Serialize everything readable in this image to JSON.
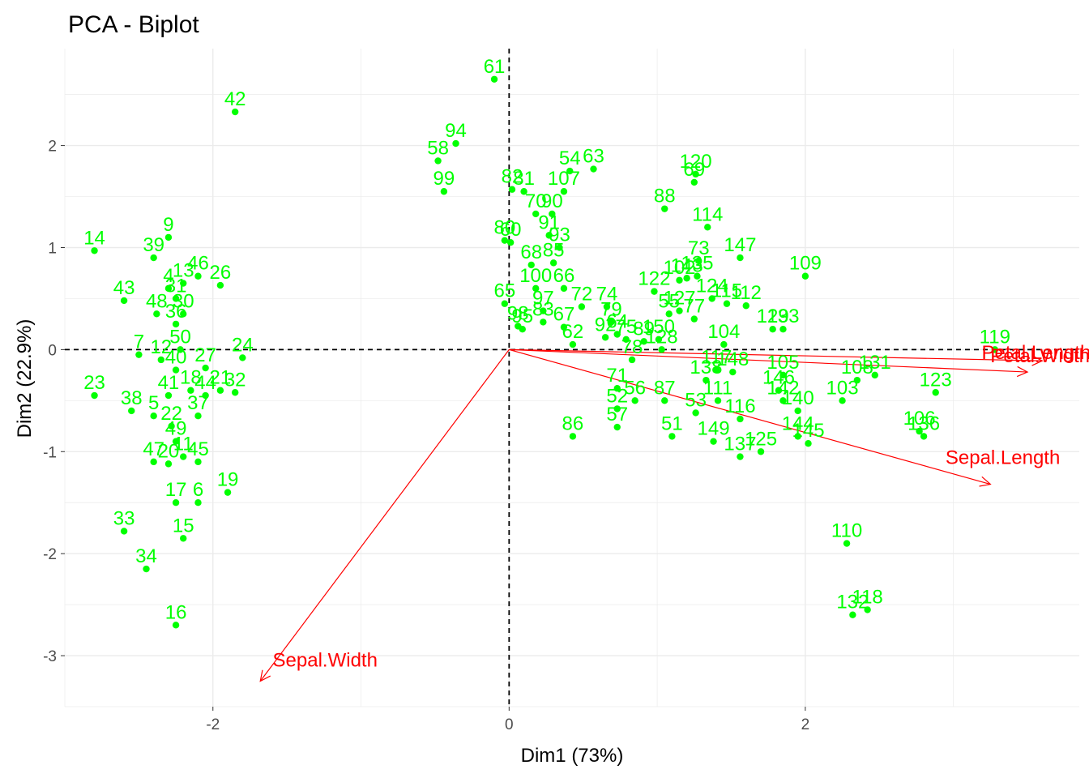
{
  "chart_data": {
    "type": "scatter",
    "title": "PCA - Biplot",
    "xlabel": "Dim1 (73%)",
    "ylabel": "Dim2 (22.9%)",
    "xlim": [
      -3.0,
      3.85
    ],
    "ylim": [
      -3.5,
      2.95
    ],
    "x_ticks": [
      -2,
      0,
      2
    ],
    "y_ticks": [
      -3,
      -2,
      -1,
      0,
      1,
      2
    ],
    "grid": true,
    "legend": "none",
    "colors": {
      "points": "#00ff00",
      "arrows": "#ff0000",
      "grid": "#ebebeb",
      "reference": "#000000"
    },
    "points": [
      {
        "label": "61",
        "x": -0.1,
        "y": 2.65
      },
      {
        "label": "42",
        "x": -1.85,
        "y": 2.33
      },
      {
        "label": "94",
        "x": -0.36,
        "y": 2.02
      },
      {
        "label": "58",
        "x": -0.48,
        "y": 1.85
      },
      {
        "label": "99",
        "x": -0.44,
        "y": 1.55
      },
      {
        "label": "54",
        "x": 0.41,
        "y": 1.75
      },
      {
        "label": "63",
        "x": 0.57,
        "y": 1.77
      },
      {
        "label": "82",
        "x": 0.02,
        "y": 1.57
      },
      {
        "label": "81",
        "x": 0.1,
        "y": 1.55
      },
      {
        "label": "107",
        "x": 0.37,
        "y": 1.55
      },
      {
        "label": "70",
        "x": 0.18,
        "y": 1.33
      },
      {
        "label": "90",
        "x": 0.29,
        "y": 1.33
      },
      {
        "label": "91",
        "x": 0.27,
        "y": 1.12
      },
      {
        "label": "93",
        "x": 0.34,
        "y": 1.0
      },
      {
        "label": "80",
        "x": -0.03,
        "y": 1.07
      },
      {
        "label": "60",
        "x": 0.01,
        "y": 1.05
      },
      {
        "label": "68",
        "x": 0.15,
        "y": 0.83
      },
      {
        "label": "85",
        "x": 0.3,
        "y": 0.85
      },
      {
        "label": "100",
        "x": 0.18,
        "y": 0.6
      },
      {
        "label": "66",
        "x": 0.37,
        "y": 0.6
      },
      {
        "label": "65",
        "x": -0.03,
        "y": 0.45
      },
      {
        "label": "97",
        "x": 0.23,
        "y": 0.38
      },
      {
        "label": "72",
        "x": 0.49,
        "y": 0.42
      },
      {
        "label": "74",
        "x": 0.66,
        "y": 0.42
      },
      {
        "label": "83",
        "x": 0.23,
        "y": 0.27
      },
      {
        "label": "95",
        "x": 0.09,
        "y": 0.2
      },
      {
        "label": "98",
        "x": 0.06,
        "y": 0.23
      },
      {
        "label": "67",
        "x": 0.37,
        "y": 0.22
      },
      {
        "label": "62",
        "x": 0.43,
        "y": 0.05
      },
      {
        "label": "79",
        "x": 0.69,
        "y": 0.27
      },
      {
        "label": "64",
        "x": 0.73,
        "y": 0.15
      },
      {
        "label": "92",
        "x": 0.65,
        "y": 0.12
      },
      {
        "label": "75",
        "x": 0.79,
        "y": 0.1
      },
      {
        "label": "89",
        "x": 0.91,
        "y": 0.08
      },
      {
        "label": "150",
        "x": 1.01,
        "y": 0.1
      },
      {
        "label": "128",
        "x": 1.03,
        "y": 0.0
      },
      {
        "label": "78",
        "x": 0.83,
        "y": -0.1
      },
      {
        "label": "71",
        "x": 0.73,
        "y": -0.38
      },
      {
        "label": "52",
        "x": 0.73,
        "y": -0.58
      },
      {
        "label": "56",
        "x": 0.85,
        "y": -0.5
      },
      {
        "label": "87",
        "x": 1.05,
        "y": -0.5
      },
      {
        "label": "57",
        "x": 0.73,
        "y": -0.76
      },
      {
        "label": "86",
        "x": 0.43,
        "y": -0.85
      },
      {
        "label": "51",
        "x": 1.1,
        "y": -0.85
      },
      {
        "label": "53",
        "x": 1.26,
        "y": -0.62
      },
      {
        "label": "88",
        "x": 1.05,
        "y": 1.38
      },
      {
        "label": "120",
        "x": 1.26,
        "y": 1.72
      },
      {
        "label": "69",
        "x": 1.25,
        "y": 1.64
      },
      {
        "label": "114",
        "x": 1.34,
        "y": 1.2
      },
      {
        "label": "73",
        "x": 1.28,
        "y": 0.87
      },
      {
        "label": "135",
        "x": 1.27,
        "y": 0.72
      },
      {
        "label": "122",
        "x": 0.98,
        "y": 0.57
      },
      {
        "label": "102",
        "x": 1.15,
        "y": 0.68
      },
      {
        "label": "143",
        "x": 1.2,
        "y": 0.7
      },
      {
        "label": "124",
        "x": 1.37,
        "y": 0.5
      },
      {
        "label": "115",
        "x": 1.47,
        "y": 0.45
      },
      {
        "label": "112",
        "x": 1.6,
        "y": 0.43
      },
      {
        "label": "55",
        "x": 1.08,
        "y": 0.35
      },
      {
        "label": "127",
        "x": 1.15,
        "y": 0.38
      },
      {
        "label": "77",
        "x": 1.25,
        "y": 0.3
      },
      {
        "label": "104",
        "x": 1.45,
        "y": 0.05
      },
      {
        "label": "147",
        "x": 1.56,
        "y": 0.9
      },
      {
        "label": "109",
        "x": 2.0,
        "y": 0.72
      },
      {
        "label": "129",
        "x": 1.78,
        "y": 0.2
      },
      {
        "label": "133",
        "x": 1.85,
        "y": 0.2
      },
      {
        "label": "117",
        "x": 1.4,
        "y": -0.2
      },
      {
        "label": "148",
        "x": 1.51,
        "y": -0.22
      },
      {
        "label": "138",
        "x": 1.33,
        "y": -0.3
      },
      {
        "label": "111",
        "x": 1.41,
        "y": -0.5
      },
      {
        "label": "149",
        "x": 1.38,
        "y": -0.9
      },
      {
        "label": "116",
        "x": 1.56,
        "y": -0.68
      },
      {
        "label": "137",
        "x": 1.56,
        "y": -1.05
      },
      {
        "label": "125",
        "x": 1.7,
        "y": -1.0
      },
      {
        "label": "105",
        "x": 1.85,
        "y": -0.25
      },
      {
        "label": "146",
        "x": 1.82,
        "y": -0.4
      },
      {
        "label": "142",
        "x": 1.85,
        "y": -0.5
      },
      {
        "label": "140",
        "x": 1.95,
        "y": -0.6
      },
      {
        "label": "103",
        "x": 2.25,
        "y": -0.5
      },
      {
        "label": "108",
        "x": 2.35,
        "y": -0.3
      },
      {
        "label": "131",
        "x": 2.47,
        "y": -0.25
      },
      {
        "label": "123",
        "x": 2.88,
        "y": -0.42
      },
      {
        "label": "106",
        "x": 2.77,
        "y": -0.8
      },
      {
        "label": "136",
        "x": 2.8,
        "y": -0.85
      },
      {
        "label": "144",
        "x": 1.95,
        "y": -0.85
      },
      {
        "label": "145",
        "x": 2.02,
        "y": -0.92
      },
      {
        "label": "119",
        "x": 3.28,
        "y": 0.0
      },
      {
        "label": "110",
        "x": 2.28,
        "y": -1.9
      },
      {
        "label": "118",
        "x": 2.42,
        "y": -2.55
      },
      {
        "label": "132",
        "x": 2.32,
        "y": -2.6
      },
      {
        "label": "14",
        "x": -2.8,
        "y": 0.97
      },
      {
        "label": "39",
        "x": -2.4,
        "y": 0.9
      },
      {
        "label": "9",
        "x": -2.3,
        "y": 1.1
      },
      {
        "label": "13",
        "x": -2.2,
        "y": 0.65
      },
      {
        "label": "46",
        "x": -2.1,
        "y": 0.72
      },
      {
        "label": "26",
        "x": -1.95,
        "y": 0.63
      },
      {
        "label": "4",
        "x": -2.3,
        "y": 0.6
      },
      {
        "label": "43",
        "x": -2.6,
        "y": 0.48
      },
      {
        "label": "48",
        "x": -2.38,
        "y": 0.35
      },
      {
        "label": "30",
        "x": -2.2,
        "y": 0.35
      },
      {
        "label": "31",
        "x": -2.25,
        "y": 0.5
      },
      {
        "label": "36",
        "x": -2.25,
        "y": 0.25
      },
      {
        "label": "50",
        "x": -2.22,
        "y": 0.0
      },
      {
        "label": "7",
        "x": -2.5,
        "y": -0.05
      },
      {
        "label": "12",
        "x": -2.35,
        "y": -0.1
      },
      {
        "label": "24",
        "x": -1.8,
        "y": -0.08
      },
      {
        "label": "40",
        "x": -2.25,
        "y": -0.2
      },
      {
        "label": "27",
        "x": -2.05,
        "y": -0.18
      },
      {
        "label": "23",
        "x": -2.8,
        "y": -0.45
      },
      {
        "label": "38",
        "x": -2.55,
        "y": -0.6
      },
      {
        "label": "5",
        "x": -2.4,
        "y": -0.65
      },
      {
        "label": "41",
        "x": -2.3,
        "y": -0.45
      },
      {
        "label": "18",
        "x": -2.15,
        "y": -0.4
      },
      {
        "label": "21",
        "x": -1.95,
        "y": -0.4
      },
      {
        "label": "32",
        "x": -1.85,
        "y": -0.42
      },
      {
        "label": "44",
        "x": -2.05,
        "y": -0.45
      },
      {
        "label": "37",
        "x": -2.1,
        "y": -0.65
      },
      {
        "label": "22",
        "x": -2.28,
        "y": -0.75
      },
      {
        "label": "49",
        "x": -2.25,
        "y": -0.9
      },
      {
        "label": "47",
        "x": -2.4,
        "y": -1.1
      },
      {
        "label": "20",
        "x": -2.3,
        "y": -1.12
      },
      {
        "label": "11",
        "x": -2.2,
        "y": -1.05
      },
      {
        "label": "45",
        "x": -2.1,
        "y": -1.1
      },
      {
        "label": "19",
        "x": -1.9,
        "y": -1.4
      },
      {
        "label": "17",
        "x": -2.25,
        "y": -1.5
      },
      {
        "label": "6",
        "x": -2.1,
        "y": -1.5
      },
      {
        "label": "33",
        "x": -2.6,
        "y": -1.78
      },
      {
        "label": "15",
        "x": -2.2,
        "y": -1.85
      },
      {
        "label": "34",
        "x": -2.45,
        "y": -2.15
      },
      {
        "label": "16",
        "x": -2.25,
        "y": -2.7
      }
    ],
    "variables": [
      {
        "label": "Petal.Length",
        "x": 3.6,
        "y": -0.11
      },
      {
        "label": "Petal.Width",
        "x": 3.5,
        "y": -0.22
      },
      {
        "label": "Sepal.Length",
        "x": 3.25,
        "y": -1.32
      },
      {
        "label": "Sepal.Width",
        "x": -1.68,
        "y": -3.25
      }
    ]
  }
}
